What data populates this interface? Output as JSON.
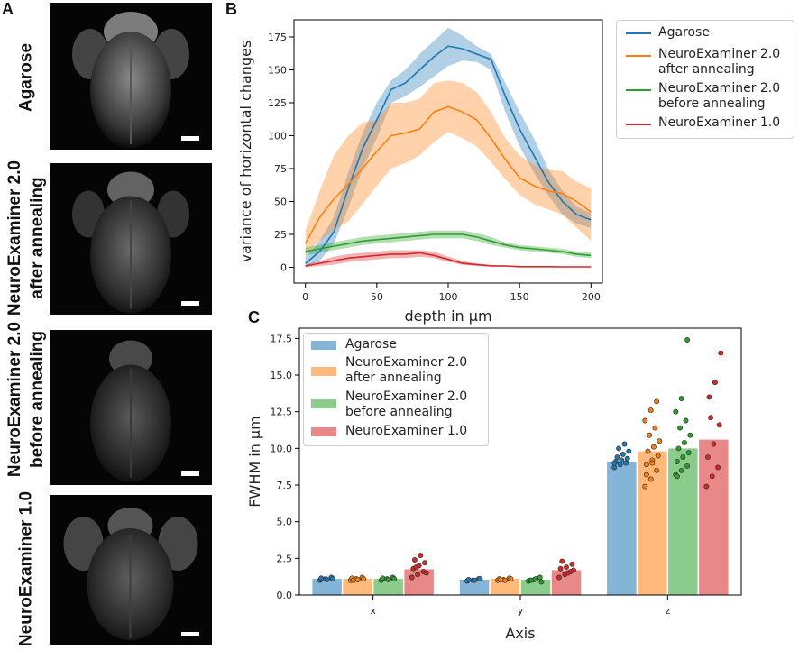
{
  "panels": {
    "a_letter": "A",
    "b_letter": "B",
    "c_letter": "C"
  },
  "panel_a": {
    "rows": [
      {
        "label_line1": "Agarose",
        "label_line2": ""
      },
      {
        "label_line1": "NeuroExaminer 2.0",
        "label_line2": "after annealing"
      },
      {
        "label_line1": "NeuroExaminer 2.0",
        "label_line2": "before annealing"
      },
      {
        "label_line1": "NeuroExaminer 1.0",
        "label_line2": ""
      }
    ]
  },
  "colors": {
    "agarose": "#1f77b4",
    "after": "#ff7f0e",
    "before": "#2ca02c",
    "ne1": "#d62728"
  },
  "chart_data": [
    {
      "type": "line",
      "panel": "B",
      "title": "",
      "xlabel": "depth in µm",
      "ylabel": "variance of horizontal changes",
      "xlim": [
        -8,
        208
      ],
      "ylim": [
        -12,
        188
      ],
      "xticks": [
        0,
        50,
        100,
        150,
        200
      ],
      "yticks": [
        0,
        25,
        50,
        75,
        100,
        125,
        150,
        175
      ],
      "legend_position": "outside-right",
      "x": [
        0,
        10,
        20,
        30,
        40,
        50,
        60,
        70,
        80,
        90,
        100,
        110,
        120,
        130,
        140,
        150,
        160,
        170,
        180,
        190,
        200
      ],
      "series": [
        {
          "name": "Agarose",
          "color_key": "agarose",
          "values": [
            3,
            12,
            27,
            60,
            90,
            112,
            135,
            140,
            150,
            160,
            168,
            166,
            162,
            158,
            130,
            105,
            85,
            65,
            50,
            40,
            36
          ],
          "lower": [
            0,
            5,
            18,
            45,
            75,
            98,
            125,
            130,
            137,
            145,
            153,
            157,
            156,
            150,
            118,
            92,
            72,
            55,
            40,
            33,
            30
          ],
          "upper": [
            8,
            20,
            38,
            72,
            102,
            125,
            142,
            150,
            162,
            172,
            182,
            176,
            168,
            162,
            140,
            118,
            98,
            75,
            58,
            46,
            41
          ]
        },
        {
          "name": "NeuroExaminer 2.0 after annealing",
          "color_key": "after",
          "values": [
            18,
            38,
            52,
            63,
            75,
            88,
            100,
            102,
            105,
            118,
            122,
            118,
            112,
            98,
            82,
            68,
            62,
            58,
            56,
            50,
            42
          ],
          "lower": [
            10,
            20,
            28,
            35,
            48,
            62,
            75,
            79,
            85,
            95,
            103,
            98,
            92,
            80,
            67,
            55,
            48,
            44,
            40,
            30,
            20
          ],
          "upper": [
            28,
            58,
            85,
            100,
            110,
            112,
            125,
            125,
            128,
            140,
            142,
            140,
            133,
            118,
            98,
            85,
            78,
            74,
            73,
            65,
            60
          ]
        },
        {
          "name": "NeuroExaminer 2.0 before annealing",
          "color_key": "before",
          "values": [
            12,
            14,
            16,
            18,
            20,
            21,
            22,
            23,
            24,
            25,
            25,
            25,
            23,
            20,
            17,
            15,
            14,
            13,
            12,
            10,
            9
          ],
          "lower": [
            9,
            11,
            13,
            15,
            17,
            18,
            19,
            20,
            21,
            22,
            22,
            22,
            20,
            17,
            15,
            13,
            12,
            11,
            10,
            8,
            7
          ],
          "upper": [
            15,
            17,
            19,
            21,
            23,
            24,
            25,
            26,
            27,
            28,
            28,
            28,
            26,
            23,
            19,
            17,
            16,
            15,
            14,
            12,
            11
          ]
        },
        {
          "name": "NeuroExaminer 1.0",
          "color_key": "ne1",
          "values": [
            1,
            3,
            5,
            7,
            8,
            9,
            10,
            10,
            11,
            9,
            6,
            3,
            2,
            1,
            1,
            0.5,
            0.5,
            0.5,
            0.3,
            0.3,
            0.3
          ],
          "lower": [
            0,
            1,
            2,
            4,
            5,
            6,
            7,
            7,
            8,
            7,
            4,
            2,
            1,
            0.5,
            0.5,
            0.2,
            0.2,
            0.2,
            0.1,
            0.1,
            0.1
          ],
          "upper": [
            2,
            5,
            8,
            10,
            11,
            12,
            13,
            13,
            13,
            12,
            8,
            5,
            3,
            2,
            1.5,
            1,
            1,
            1,
            0.6,
            0.6,
            0.6
          ]
        }
      ]
    },
    {
      "type": "bar",
      "panel": "C",
      "title": "",
      "xlabel": "Axis",
      "ylabel": "FWHM in µm",
      "ylim": [
        0,
        18.2
      ],
      "yticks": [
        0.0,
        2.5,
        5.0,
        7.5,
        10.0,
        12.5,
        15.0,
        17.5
      ],
      "ytick_labels": [
        "0.0",
        "2.5",
        "5.0",
        "7.5",
        "10.0",
        "12.5",
        "15.0",
        "17.5"
      ],
      "legend_position": "top-left",
      "categories": [
        "x",
        "y",
        "z"
      ],
      "series": [
        {
          "name": "Agarose",
          "color_key": "agarose",
          "values": [
            1.1,
            1.05,
            9.1
          ],
          "points": [
            [
              1.0,
              1.1,
              1.2,
              1.15,
              1.05,
              1.1
            ],
            [
              0.95,
              1.0,
              1.1,
              1.05,
              1.0,
              1.1
            ],
            [
              8.7,
              8.9,
              9.0,
              9.1,
              9.2,
              9.3,
              9.4,
              9.6,
              9.8,
              10.0,
              10.3,
              9.0
            ]
          ]
        },
        {
          "name": "NeuroExaminer 2.0 after annealing",
          "color_key": "after",
          "values": [
            1.1,
            1.1,
            9.8
          ],
          "points": [
            [
              1.0,
              1.1,
              1.2,
              1.15,
              1.05,
              1.1,
              1.0
            ],
            [
              1.0,
              1.05,
              1.15,
              1.1,
              1.0,
              1.1,
              1.05
            ],
            [
              7.4,
              7.9,
              8.5,
              8.9,
              9.2,
              9.5,
              9.8,
              10.1,
              10.5,
              10.9,
              11.4,
              11.9,
              12.6,
              13.2,
              8.2,
              9.0
            ]
          ]
        },
        {
          "name": "NeuroExaminer 2.0 before annealing",
          "color_key": "before",
          "values": [
            1.1,
            1.05,
            10.0
          ],
          "points": [
            [
              1.0,
              1.1,
              1.2,
              1.15,
              1.05,
              1.1
            ],
            [
              0.95,
              1.05,
              1.2,
              1.0,
              1.1,
              0.9,
              1.0
            ],
            [
              8.2,
              8.5,
              8.8,
              9.1,
              9.4,
              9.7,
              10.0,
              10.4,
              10.9,
              11.4,
              11.9,
              12.5,
              13.4,
              17.4,
              8.1
            ]
          ]
        },
        {
          "name": "NeuroExaminer 1.0",
          "color_key": "ne1",
          "values": [
            1.75,
            1.7,
            10.6
          ],
          "points": [
            [
              1.2,
              1.4,
              1.6,
              1.8,
              2.0,
              2.2,
              2.4,
              2.7,
              1.5,
              1.9
            ],
            [
              1.2,
              1.4,
              1.6,
              1.8,
              1.9,
              2.1,
              2.3,
              1.5,
              1.7
            ],
            [
              7.4,
              8.1,
              8.7,
              9.4,
              10.3,
              11.6,
              13.5,
              14.5,
              16.5,
              12.1
            ]
          ]
        }
      ]
    }
  ]
}
